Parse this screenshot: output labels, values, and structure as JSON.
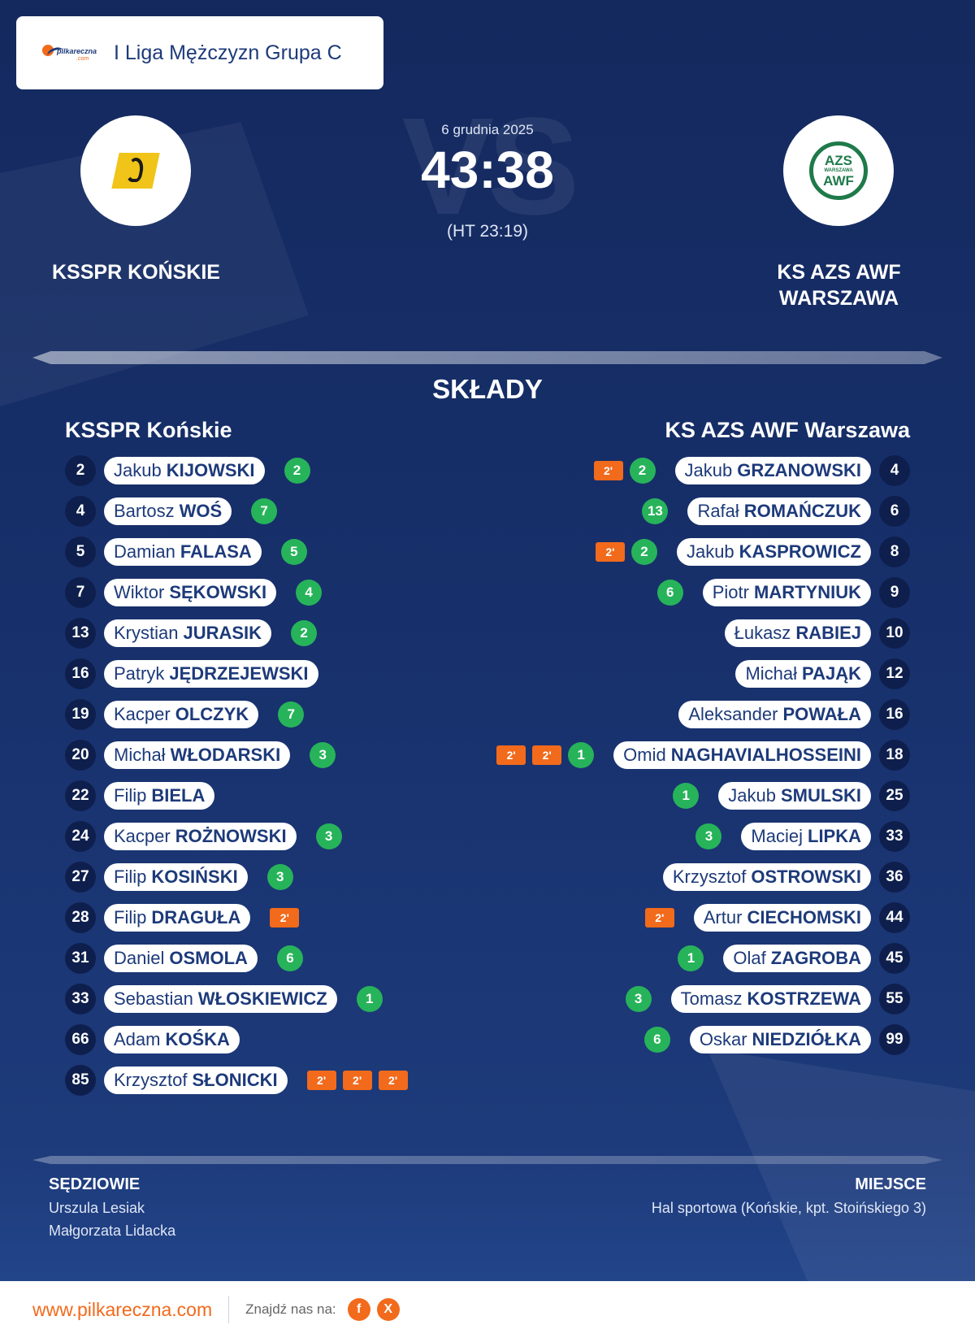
{
  "league": {
    "brand": "pilkareczna",
    "brand_suffix": ".com",
    "name": "I Liga Mężczyzn Grupa C"
  },
  "match": {
    "date": "6 grudnia 2025",
    "score": "43:38",
    "halftime": "(HT 23:19)",
    "vs": "VS"
  },
  "home": {
    "name": "KSSPR KOŃSKIE",
    "lineup_name": "KSSPR Końskie",
    "players": [
      {
        "number": "2",
        "first": "Jakub",
        "last": "KIJOWSKI",
        "goals": "2",
        "suspensions": []
      },
      {
        "number": "4",
        "first": "Bartosz",
        "last": "WOŚ",
        "goals": "7",
        "suspensions": []
      },
      {
        "number": "5",
        "first": "Damian",
        "last": "FALASA",
        "goals": "5",
        "suspensions": []
      },
      {
        "number": "7",
        "first": "Wiktor",
        "last": "SĘKOWSKI",
        "goals": "4",
        "suspensions": []
      },
      {
        "number": "13",
        "first": "Krystian",
        "last": "JURASIK",
        "goals": "2",
        "suspensions": []
      },
      {
        "number": "16",
        "first": "Patryk",
        "last": "JĘDRZEJEWSKI",
        "goals": "",
        "suspensions": []
      },
      {
        "number": "19",
        "first": "Kacper",
        "last": "OLCZYK",
        "goals": "7",
        "suspensions": []
      },
      {
        "number": "20",
        "first": "Michał",
        "last": "WŁODARSKI",
        "goals": "3",
        "suspensions": []
      },
      {
        "number": "22",
        "first": "Filip",
        "last": "BIELA",
        "goals": "",
        "suspensions": []
      },
      {
        "number": "24",
        "first": "Kacper",
        "last": "ROŻNOWSKI",
        "goals": "3",
        "suspensions": []
      },
      {
        "number": "27",
        "first": "Filip",
        "last": "KOSIŃSKI",
        "goals": "3",
        "suspensions": []
      },
      {
        "number": "28",
        "first": "Filip",
        "last": "DRAGUŁA",
        "goals": "",
        "suspensions": [
          "2'"
        ]
      },
      {
        "number": "31",
        "first": "Daniel",
        "last": "OSMOLA",
        "goals": "6",
        "suspensions": []
      },
      {
        "number": "33",
        "first": "Sebastian",
        "last": "WŁOSKIEWICZ",
        "goals": "1",
        "suspensions": []
      },
      {
        "number": "66",
        "first": "Adam",
        "last": "KOŚKA",
        "goals": "",
        "suspensions": []
      },
      {
        "number": "85",
        "first": "Krzysztof",
        "last": "SŁONICKI",
        "goals": "",
        "suspensions": [
          "2'",
          "2'",
          "2'"
        ]
      }
    ]
  },
  "away": {
    "name": "KS AZS AWF WARSZAWA",
    "lineup_name": "KS AZS AWF Warszawa",
    "logo_text": [
      "AZS",
      "WARSZAWA",
      "AWF"
    ],
    "players": [
      {
        "number": "4",
        "first": "Jakub",
        "last": "GRZANOWSKI",
        "goals": "2",
        "suspensions": [
          "2'"
        ]
      },
      {
        "number": "6",
        "first": "Rafał",
        "last": "ROMAŃCZUK",
        "goals": "13",
        "suspensions": []
      },
      {
        "number": "8",
        "first": "Jakub",
        "last": "KASPROWICZ",
        "goals": "2",
        "suspensions": [
          "2'"
        ]
      },
      {
        "number": "9",
        "first": "Piotr",
        "last": "MARTYNIUK",
        "goals": "6",
        "suspensions": []
      },
      {
        "number": "10",
        "first": "Łukasz",
        "last": "RABIEJ",
        "goals": "",
        "suspensions": []
      },
      {
        "number": "12",
        "first": "Michał",
        "last": "PAJĄK",
        "goals": "",
        "suspensions": []
      },
      {
        "number": "16",
        "first": "Aleksander",
        "last": "POWAŁA",
        "goals": "",
        "suspensions": []
      },
      {
        "number": "18",
        "first": "Omid",
        "last": "NAGHAVIALHOSSEINI",
        "goals": "1",
        "suspensions": [
          "2'",
          "2'"
        ]
      },
      {
        "number": "25",
        "first": "Jakub",
        "last": "SMULSKI",
        "goals": "1",
        "suspensions": []
      },
      {
        "number": "33",
        "first": "Maciej",
        "last": "LIPKA",
        "goals": "3",
        "suspensions": []
      },
      {
        "number": "36",
        "first": "Krzysztof",
        "last": "OSTROWSKI",
        "goals": "",
        "suspensions": []
      },
      {
        "number": "44",
        "first": "Artur",
        "last": "CIECHOMSKI",
        "goals": "",
        "suspensions": [
          "2'"
        ]
      },
      {
        "number": "45",
        "first": "Olaf",
        "last": "ZAGROBA",
        "goals": "1",
        "suspensions": []
      },
      {
        "number": "55",
        "first": "Tomasz",
        "last": "KOSTRZEWA",
        "goals": "3",
        "suspensions": []
      },
      {
        "number": "99",
        "first": "Oskar",
        "last": "NIEDZIÓŁKA",
        "goals": "6",
        "suspensions": []
      }
    ]
  },
  "lineups_title": "SKŁADY",
  "referees": {
    "title": "SĘDZIOWIE",
    "names": [
      "Urszula Lesiak",
      "Małgorzata Lidacka"
    ]
  },
  "venue": {
    "title": "MIEJSCE",
    "name": "Hal sportowa (Końskie, kpt. Stoińskiego 3)"
  },
  "footer": {
    "url": "www.pilkareczna.com",
    "find_us": "Znajdź nas na:",
    "social": [
      {
        "icon": "facebook-icon",
        "glyph": "f"
      },
      {
        "icon": "x-icon",
        "glyph": "X"
      }
    ]
  },
  "colors": {
    "background": "#17306b",
    "accent": "#f26a1b",
    "goals": "#27b35a",
    "number_badge": "#0e1f4d"
  }
}
